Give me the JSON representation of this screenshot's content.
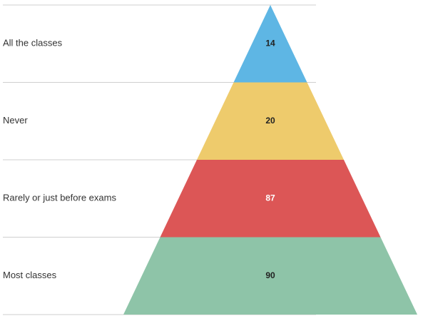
{
  "chart_data": {
    "type": "pyramid",
    "categories": [
      "All the classes",
      "Never",
      "Rarely or just before exams",
      "Most classes"
    ],
    "values": [
      14,
      20,
      87,
      90
    ],
    "value_labels": [
      "14",
      "20",
      "87",
      "90"
    ],
    "colors": [
      "#5eb6e4",
      "#eecb6c",
      "#dc5656",
      "#8ec4a8"
    ],
    "value_label_colors": [
      "#222222",
      "#222222",
      "#ffffff",
      "#222222"
    ],
    "divider_color": "#cfcfcf",
    "title": "",
    "xlabel": "",
    "ylabel": ""
  }
}
